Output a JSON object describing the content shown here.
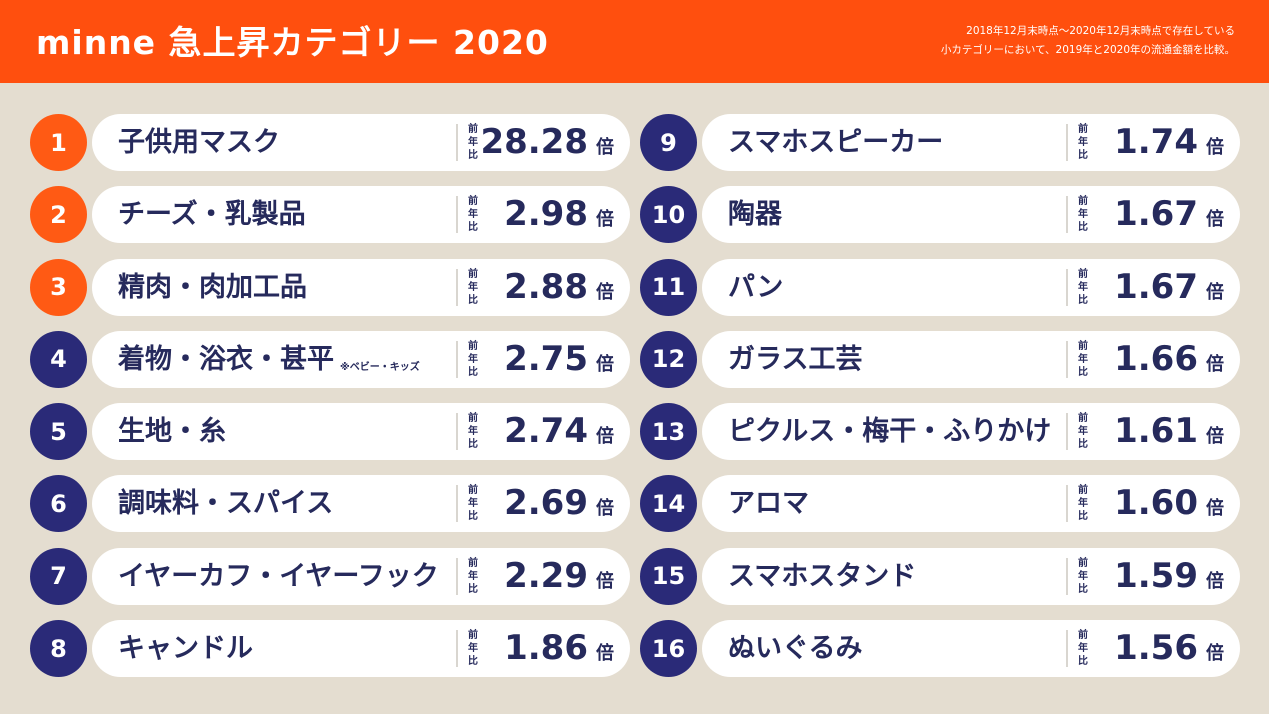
{
  "header": {
    "title": "minne 急上昇カテゴリー 2020",
    "note_line1": "2018年12月末時点〜2020年12月末時点で存在している",
    "note_line2": "小カテゴリーにおいて、2019年と2020年の流通金額を比較。"
  },
  "colors": {
    "header_bg": "#ff4f0e",
    "top3_badge": "#ff5a14",
    "badge": "#2a2a78",
    "text": "#262a5c",
    "background": "#e4ddd0"
  },
  "labels": {
    "yoy": "前年比",
    "unit": "倍"
  },
  "chart_data": {
    "type": "table",
    "title": "minne 急上昇カテゴリー 2020",
    "columns": [
      "rank",
      "category",
      "前年比 (倍)"
    ],
    "rows": [
      {
        "rank": "1",
        "category": "子供用マスク",
        "note": "",
        "value": "28.28"
      },
      {
        "rank": "2",
        "category": "チーズ・乳製品",
        "note": "",
        "value": "2.98"
      },
      {
        "rank": "3",
        "category": "精肉・肉加工品",
        "note": "",
        "value": "2.88"
      },
      {
        "rank": "4",
        "category": "着物・浴衣・甚平",
        "note": "※ベビー・キッズ",
        "value": "2.75"
      },
      {
        "rank": "5",
        "category": "生地・糸",
        "note": "",
        "value": "2.74"
      },
      {
        "rank": "6",
        "category": "調味料・スパイス",
        "note": "",
        "value": "2.69"
      },
      {
        "rank": "7",
        "category": "イヤーカフ・イヤーフック",
        "note": "",
        "value": "2.29"
      },
      {
        "rank": "8",
        "category": "キャンドル",
        "note": "",
        "value": "1.86"
      },
      {
        "rank": "9",
        "category": "スマホスピーカー",
        "note": "",
        "value": "1.74"
      },
      {
        "rank": "10",
        "category": "陶器",
        "note": "",
        "value": "1.67"
      },
      {
        "rank": "11",
        "category": "パン",
        "note": "",
        "value": "1.67"
      },
      {
        "rank": "12",
        "category": "ガラス工芸",
        "note": "",
        "value": "1.66"
      },
      {
        "rank": "13",
        "category": "ピクルス・梅干・ふりかけ",
        "note": "",
        "value": "1.61"
      },
      {
        "rank": "14",
        "category": "アロマ",
        "note": "",
        "value": "1.60"
      },
      {
        "rank": "15",
        "category": "スマホスタンド",
        "note": "",
        "value": "1.59"
      },
      {
        "rank": "16",
        "category": "ぬいぐるみ",
        "note": "",
        "value": "1.56"
      }
    ]
  }
}
